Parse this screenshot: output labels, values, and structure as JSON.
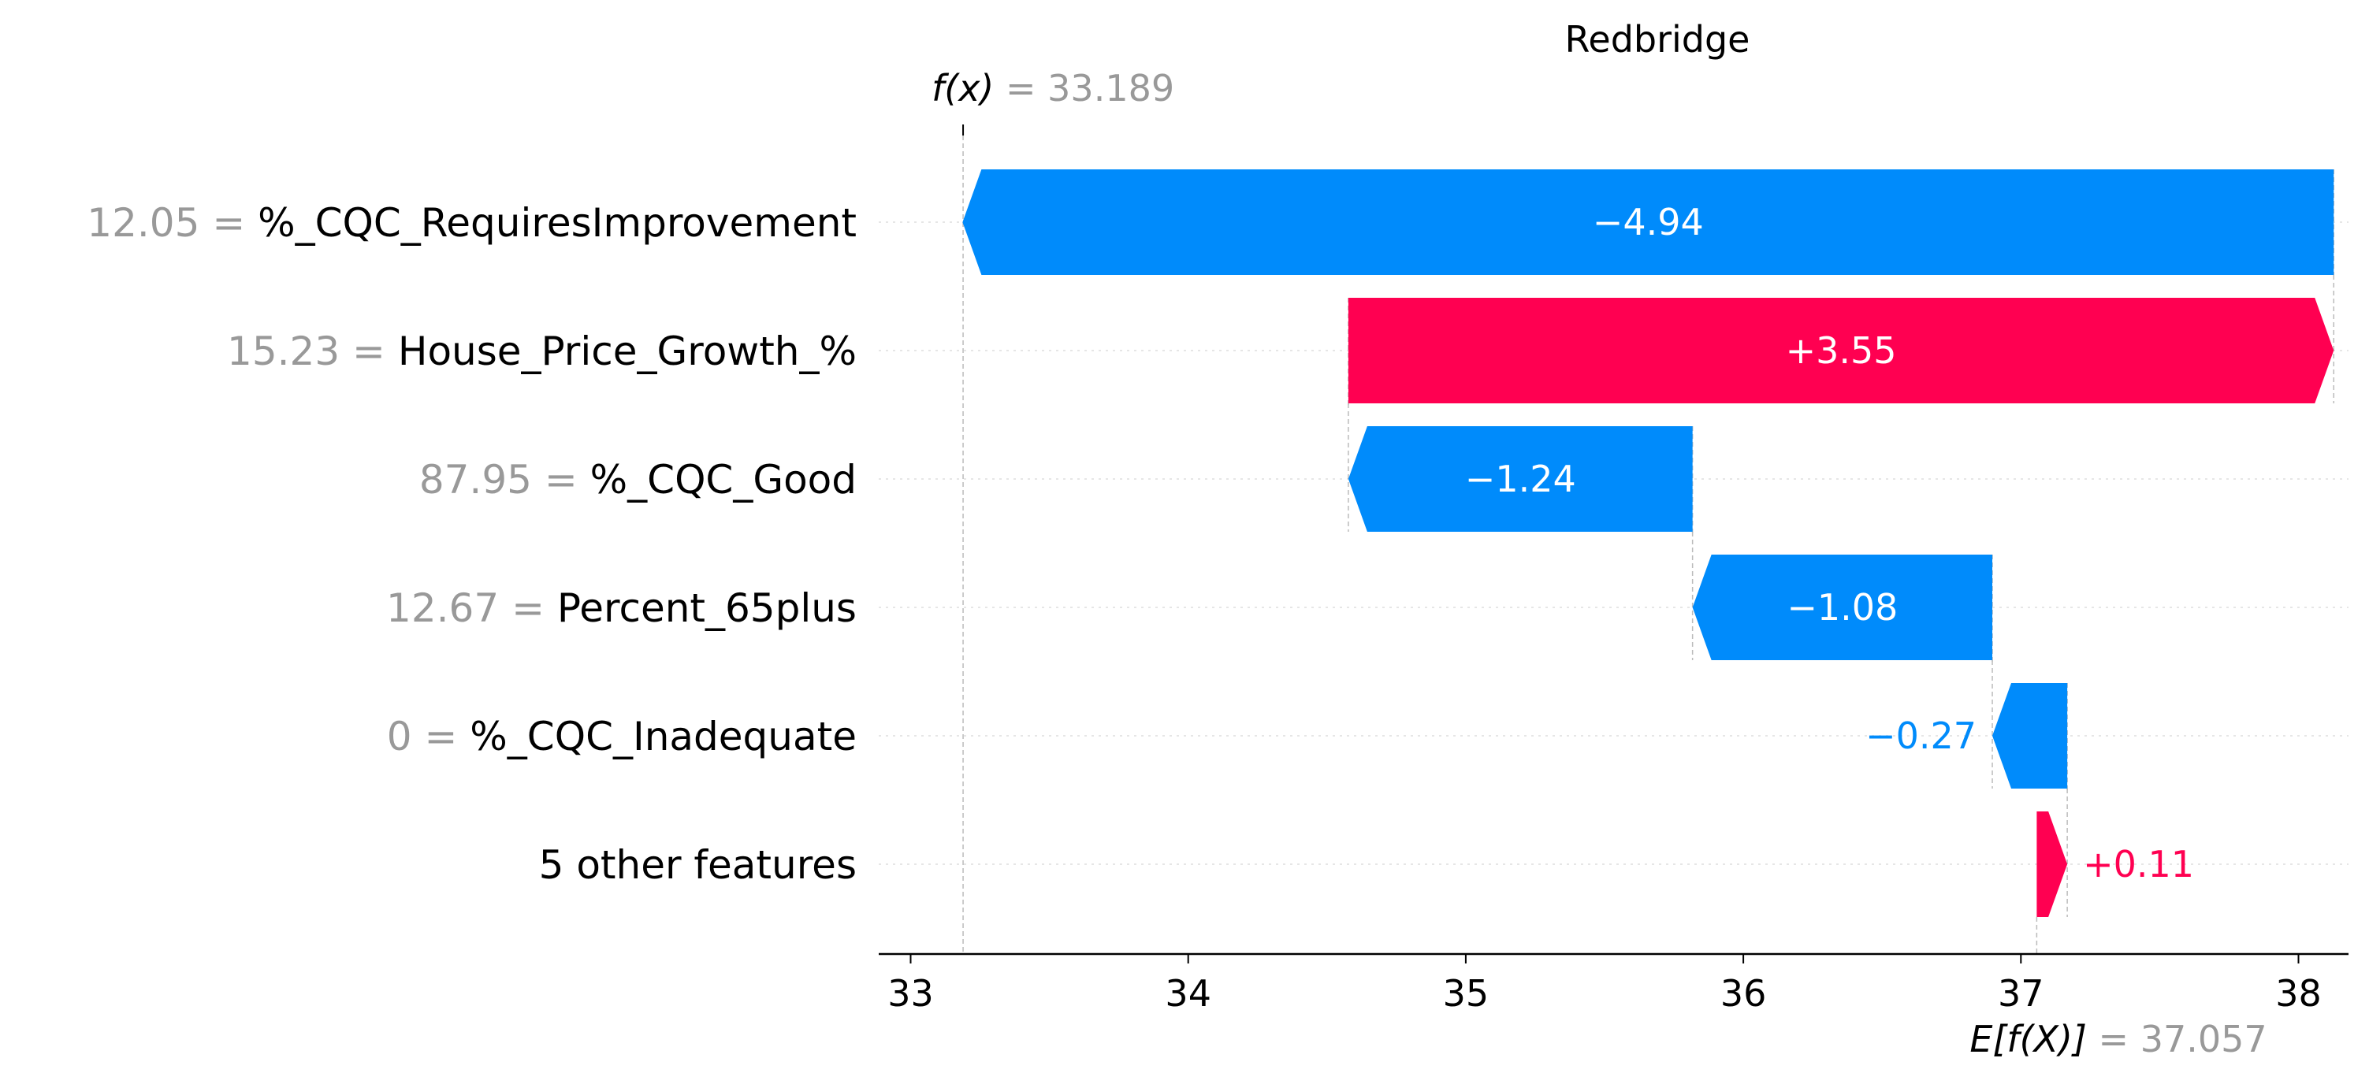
{
  "chart_data": {
    "type": "waterfall",
    "title": "Redbridge",
    "f_x": {
      "prefix": "f(x)",
      "eq": " = ",
      "value": "33.189",
      "number": 33.189
    },
    "e_fx": {
      "prefix": "E[f(X)]",
      "eq": " = ",
      "value": "37.057",
      "number": 37.057
    },
    "features": [
      {
        "value": "12.05",
        "name": "%_CQC_RequiresImprovement",
        "contribution": -4.94,
        "label": "−4.94"
      },
      {
        "value": "15.23",
        "name": "House_Price_Growth_%",
        "contribution": 3.55,
        "label": "+3.55"
      },
      {
        "value": "87.95",
        "name": "%_CQC_Good",
        "contribution": -1.24,
        "label": "−1.24"
      },
      {
        "value": "12.67",
        "name": "Percent_65plus",
        "contribution": -1.08,
        "label": "−1.08"
      },
      {
        "value": "0",
        "name": "%_CQC_Inadequate",
        "contribution": -0.27,
        "label": "−0.27"
      },
      {
        "value": "",
        "name": "5 other features",
        "contribution": 0.11,
        "label": "+0.11"
      }
    ],
    "xlim": [
      32.9,
      38.17
    ],
    "xticks": [
      33,
      34,
      35,
      36,
      37,
      38
    ],
    "colors": {
      "positive": "#ff0051",
      "negative": "#008bfb",
      "muted": "#999999"
    }
  }
}
